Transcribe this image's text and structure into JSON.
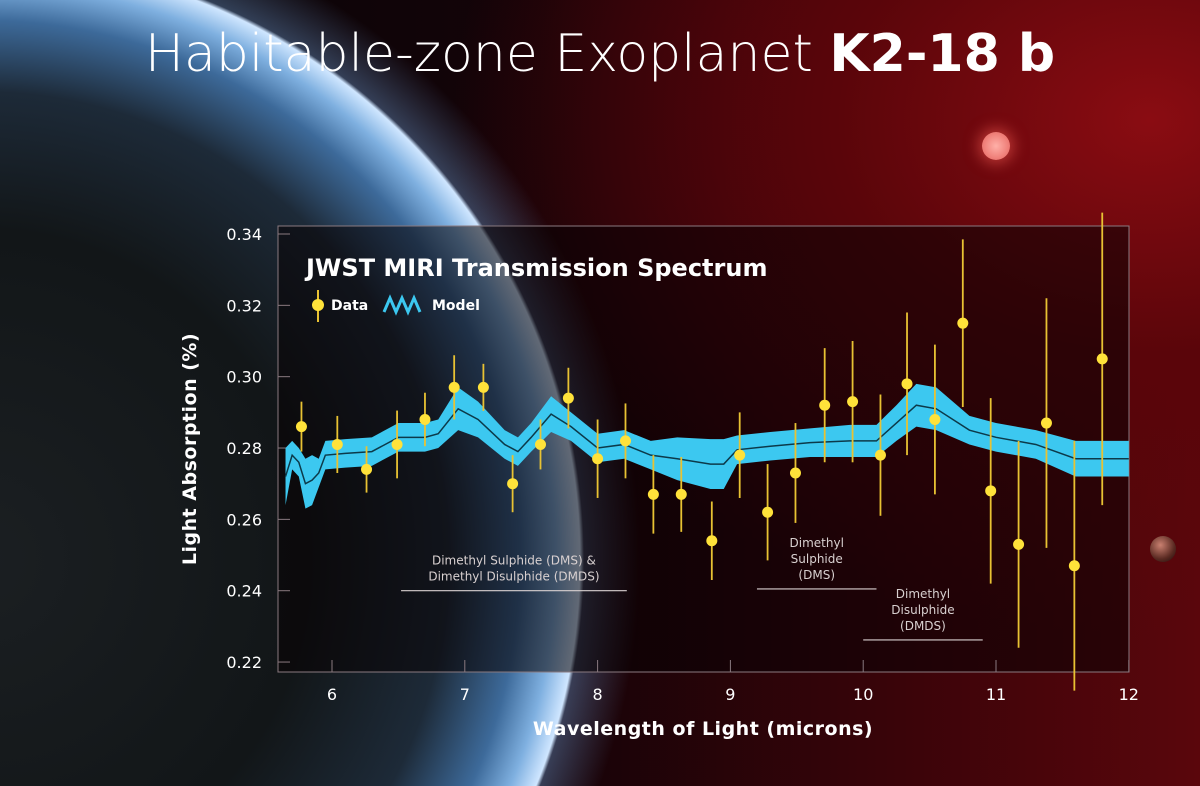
{
  "title": {
    "light": "Habitable-zone Exoplanet",
    "bold": "K2-18 b"
  },
  "chart_data": {
    "type": "scatter",
    "title": "JWST MIRI Transmission Spectrum",
    "xlabel": "Wavelength of Light (microns)",
    "ylabel": "Light Absorption (%)",
    "xlim": [
      5.65,
      12
    ],
    "ylim": [
      0.215,
      0.342
    ],
    "xticks": [
      6,
      7,
      8,
      9,
      10,
      11,
      12
    ],
    "yticks": [
      0.22,
      0.24,
      0.26,
      0.28,
      0.3,
      0.32,
      0.34
    ],
    "ytick_labels": [
      "0.22",
      "0.24",
      "0.26",
      "0.28",
      "0.30",
      "0.32",
      "0.34"
    ],
    "legend": {
      "placement": "top-left",
      "data_label": "Data",
      "model_label": "Model"
    },
    "colors": {
      "data": "#ffe23a",
      "errorbar": "#e8c233",
      "model": "#3cc8f0",
      "model_line": "#0c3a4a"
    },
    "data": {
      "x": [
        5.77,
        6.04,
        6.26,
        6.49,
        6.7,
        6.92,
        7.14,
        7.36,
        7.57,
        7.78,
        8.0,
        8.21,
        8.42,
        8.63,
        8.86,
        9.07,
        9.28,
        9.49,
        9.71,
        9.92,
        10.13,
        10.33,
        10.54,
        10.75,
        10.96,
        11.17,
        11.38,
        11.59,
        11.8
      ],
      "y": [
        0.286,
        0.281,
        0.274,
        0.281,
        0.288,
        0.297,
        0.297,
        0.27,
        0.281,
        0.294,
        0.277,
        0.282,
        0.267,
        0.267,
        0.254,
        0.278,
        0.262,
        0.273,
        0.292,
        0.293,
        0.278,
        0.298,
        0.288,
        0.315,
        0.268,
        0.253,
        0.287,
        0.247,
        0.305
      ],
      "err": [
        0.007,
        0.008,
        0.0065,
        0.0095,
        0.0075,
        0.009,
        0.0066,
        0.008,
        0.007,
        0.0085,
        0.011,
        0.0105,
        0.011,
        0.0105,
        0.011,
        0.012,
        0.0135,
        0.014,
        0.016,
        0.017,
        0.017,
        0.02,
        0.021,
        0.0235,
        0.026,
        0.029,
        0.035,
        0.035,
        0.041
      ]
    },
    "model": {
      "x": [
        5.65,
        5.7,
        5.75,
        5.8,
        5.85,
        5.9,
        5.95,
        6.1,
        6.3,
        6.5,
        6.7,
        6.8,
        6.95,
        7.1,
        7.3,
        7.4,
        7.5,
        7.65,
        7.8,
        8.0,
        8.2,
        8.4,
        8.6,
        8.85,
        8.95,
        9.05,
        9.3,
        9.6,
        9.9,
        10.1,
        10.25,
        10.4,
        10.55,
        10.8,
        11.0,
        11.3,
        11.6,
        12.0
      ],
      "y": [
        0.272,
        0.278,
        0.276,
        0.27,
        0.271,
        0.273,
        0.278,
        0.2785,
        0.279,
        0.283,
        0.283,
        0.284,
        0.291,
        0.288,
        0.281,
        0.279,
        0.283,
        0.2895,
        0.286,
        0.28,
        0.281,
        0.278,
        0.277,
        0.2755,
        0.2755,
        0.2795,
        0.2805,
        0.2815,
        0.282,
        0.282,
        0.287,
        0.292,
        0.291,
        0.285,
        0.283,
        0.281,
        0.277,
        0.277
      ],
      "halfwidth": [
        0.008,
        0.004,
        0.004,
        0.007,
        0.007,
        0.004,
        0.004,
        0.004,
        0.004,
        0.004,
        0.004,
        0.004,
        0.006,
        0.005,
        0.004,
        0.004,
        0.004,
        0.005,
        0.004,
        0.004,
        0.004,
        0.004,
        0.006,
        0.007,
        0.007,
        0.004,
        0.004,
        0.004,
        0.0045,
        0.0045,
        0.005,
        0.006,
        0.006,
        0.004,
        0.004,
        0.004,
        0.005,
        0.005
      ]
    },
    "annotations": [
      {
        "lines": [
          "Dimethyl Sulphide (DMS) &",
          "Dimethyl Disulphide (DMDS)"
        ],
        "x_range": [
          6.52,
          8.22
        ],
        "y": 0.24
      },
      {
        "lines": [
          "Dimethyl",
          "Sulphide",
          "(DMS)"
        ],
        "x_range": [
          9.2,
          10.1
        ],
        "y": 0.2405
      },
      {
        "lines": [
          "Dimethyl",
          "Disulphide",
          "(DMDS)"
        ],
        "x_range": [
          10.0,
          10.9
        ],
        "y": 0.2262
      }
    ]
  }
}
